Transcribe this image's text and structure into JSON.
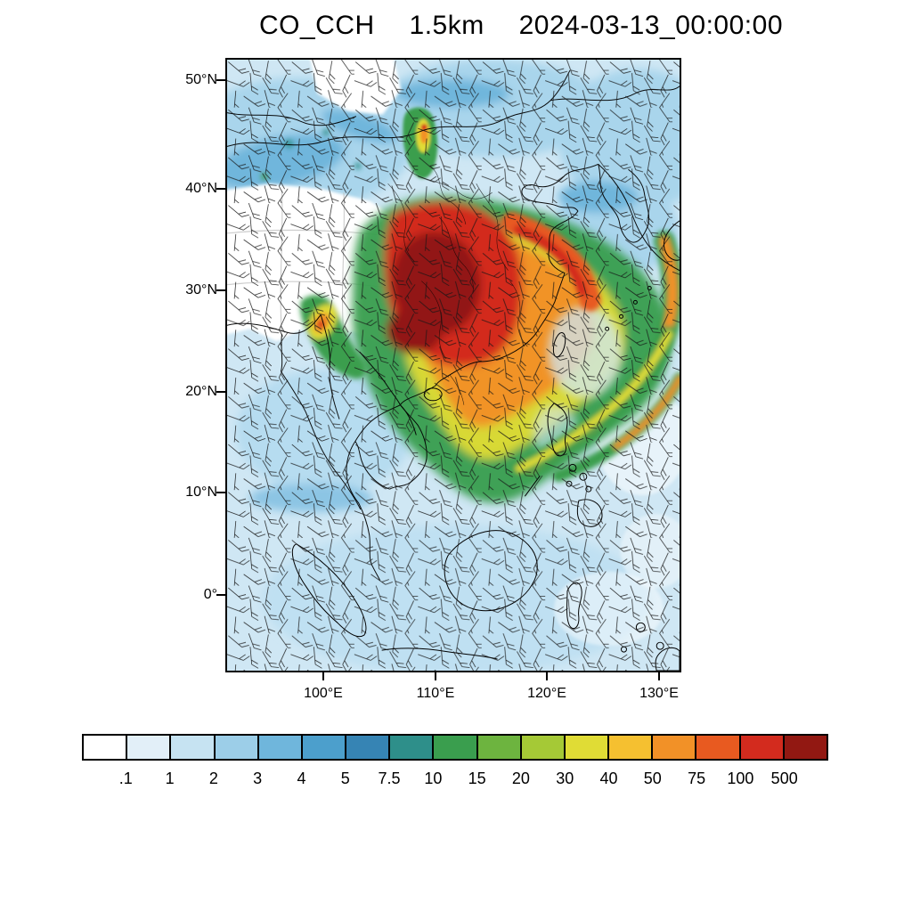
{
  "title": {
    "variable": "CO_CCH",
    "level": "1.5km",
    "valid_time": "2024-03-13_00:00:00"
  },
  "chart_data": {
    "type": "heatmap",
    "title": "CO_CCH 1.5km 2024-03-13_00:00:00",
    "variable": "CO_CCH",
    "level": "1.5km",
    "valid_time": "2024-03-13_00:00:00",
    "x_axis": {
      "ticks": [
        "100°E",
        "110°E",
        "120°E",
        "130°E"
      ],
      "positions": [
        0.2148,
        0.4609,
        0.7051,
        0.9512
      ]
    },
    "y_axis": {
      "ticks": [
        "50°N",
        "40°N",
        "30°N",
        "20°N",
        "10°N",
        "0°"
      ],
      "positions": [
        0.0362,
        0.213,
        0.3783,
        0.5435,
        0.7072,
        0.8739
      ]
    },
    "colorbar": {
      "tick_labels": [
        ".1",
        "1",
        "2",
        "3",
        "4",
        "5",
        "7.5",
        "10",
        "15",
        "20",
        "30",
        "40",
        "50",
        "75",
        "100",
        "500"
      ],
      "colors": [
        "#FFFFFF",
        "#E2EFF8",
        "#C6E3F2",
        "#9CCEE8",
        "#6FB6DC",
        "#4C9FCC",
        "#3684B4",
        "#2E8F8A",
        "#3A9E4E",
        "#6DB43F",
        "#A5C936",
        "#E0DC35",
        "#F5C030",
        "#F29127",
        "#E85A20",
        "#D32B1E",
        "#921812"
      ]
    },
    "overlays": [
      "filled concentration contours",
      "wind barbs",
      "coastlines and borders"
    ],
    "features": {
      "maximum_region": "Very high values (100 to >500, red/dark-red) over eastern-central China, roughly 104-118E and 24-38N",
      "no_data_region": "White area (below 0.1) over the Tibetan Plateau and a patch near 108E 44N",
      "plumes": "Orange/yellow/green bands arcing east then southwest over the Yellow Sea and western Pacific toward 10-20N; secondary small plume with orange-red core over Myanmar around 99E 24N",
      "background": "Light blue values of about 1-3 over oceans, Southeast Asia and the remaining domain"
    }
  }
}
